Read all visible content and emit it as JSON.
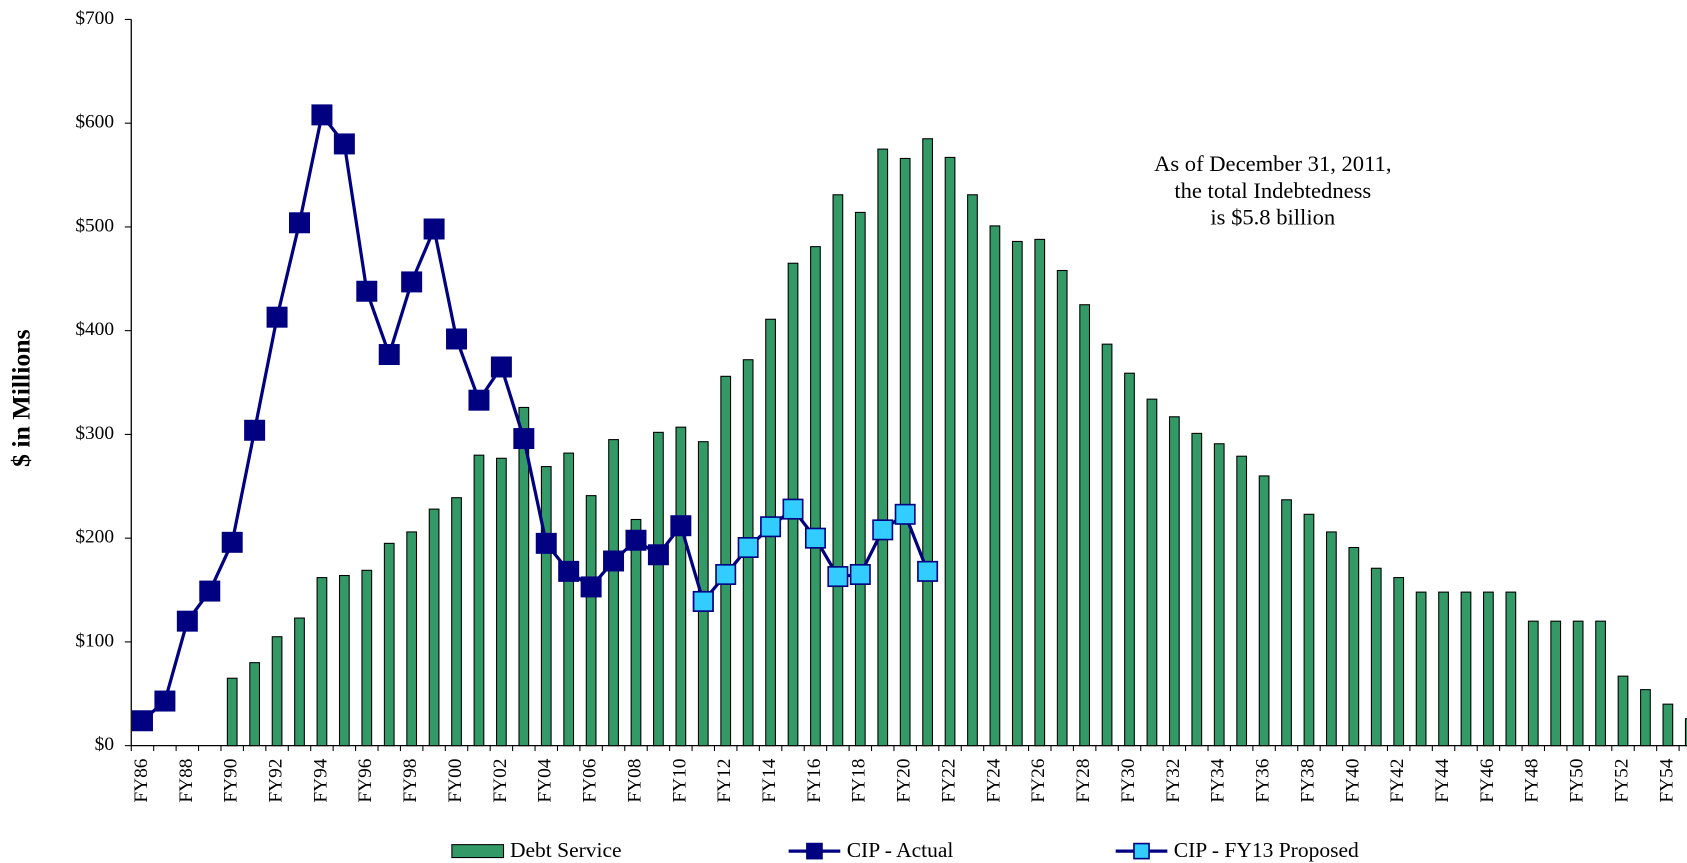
{
  "chart_data": {
    "type": "bar+line",
    "y_label": "$ in Millions",
    "annotation": [
      "As of December 31, 2011,",
      "the total Indebtedness",
      "is $5.8 billion"
    ],
    "categories": [
      "FY86",
      null,
      "FY88",
      null,
      "FY90",
      null,
      "FY92",
      null,
      "FY94",
      null,
      "FY96",
      null,
      "FY98",
      null,
      "FY00",
      null,
      "FY02",
      null,
      "FY04",
      null,
      "FY06",
      null,
      "FY08",
      null,
      "FY10",
      null,
      "FY12",
      null,
      "FY14",
      null,
      "FY16",
      null,
      "FY18",
      null,
      "FY20",
      null,
      "FY22",
      null,
      "FY24",
      null,
      "FY26",
      null,
      "FY28",
      null,
      "FY30",
      null,
      "FY32",
      null,
      "FY34",
      null,
      "FY36",
      null,
      "FY38",
      null,
      "FY40",
      null,
      "FY42",
      null,
      "FY44",
      null,
      "FY46",
      null,
      "FY48",
      null,
      "FY50",
      null,
      "FY52",
      null,
      "FY54",
      null
    ],
    "series": [
      {
        "name": "Debt Service",
        "type": "bar",
        "color": "#339966",
        "values": [
          null,
          null,
          null,
          null,
          65,
          80,
          105,
          123,
          162,
          164,
          169,
          195,
          206,
          228,
          239,
          280,
          277,
          326,
          269,
          282,
          241,
          295,
          218,
          302,
          307,
          293,
          356,
          372,
          411,
          465,
          481,
          531,
          514,
          575,
          566,
          585,
          567,
          531,
          501,
          486,
          488,
          458,
          425,
          387,
          359,
          334,
          317,
          301,
          291,
          279,
          260,
          237,
          223,
          206,
          191,
          171,
          162,
          148,
          148,
          148,
          148,
          148,
          120,
          120,
          120,
          120,
          67,
          54,
          40,
          26
        ]
      },
      {
        "name": "CIP - Actual",
        "type": "line",
        "color": "#000080",
        "marker_color": "#000080",
        "values": [
          24,
          43,
          120,
          149,
          196,
          304,
          413,
          504,
          608,
          580,
          438,
          377,
          447,
          498,
          392,
          333,
          365,
          296,
          195,
          168,
          153,
          178,
          198,
          184,
          212,
          139,
          null,
          null,
          null,
          null,
          null,
          null,
          null,
          null,
          null,
          null,
          null,
          null,
          null,
          null,
          null,
          null,
          null,
          null,
          null,
          null,
          null,
          null,
          null,
          null,
          null,
          null,
          null,
          null,
          null,
          null,
          null,
          null,
          null,
          null,
          null,
          null,
          null,
          null,
          null,
          null,
          null,
          null,
          null,
          null
        ]
      },
      {
        "name": "CIP - FY13 Proposed",
        "type": "line",
        "color": "#000080",
        "marker_color": "#33ccff",
        "values": [
          null,
          null,
          null,
          null,
          null,
          null,
          null,
          null,
          null,
          null,
          null,
          null,
          null,
          null,
          null,
          null,
          null,
          null,
          null,
          null,
          null,
          null,
          null,
          null,
          null,
          139,
          165,
          191,
          211,
          228,
          200,
          163,
          165,
          208,
          223,
          168,
          null,
          null,
          null,
          null,
          null,
          null,
          null,
          null,
          null,
          null,
          null,
          null,
          null,
          null,
          null,
          null,
          null,
          null,
          null,
          null,
          null,
          null,
          null,
          null,
          null,
          null,
          null,
          null,
          null,
          null,
          null,
          null,
          null,
          null
        ]
      }
    ],
    "ylim": [
      0,
      700
    ],
    "yticks": [
      {
        "value": 0,
        "label": "$0"
      },
      {
        "value": 100,
        "label": "$100"
      },
      {
        "value": 200,
        "label": "$200"
      },
      {
        "value": 300,
        "label": "$300"
      },
      {
        "value": 400,
        "label": "$400"
      },
      {
        "value": 500,
        "label": "$500"
      },
      {
        "value": 600,
        "label": "$600"
      },
      {
        "value": 700,
        "label": "$700"
      }
    ],
    "grid": false,
    "legend": "bottom"
  }
}
